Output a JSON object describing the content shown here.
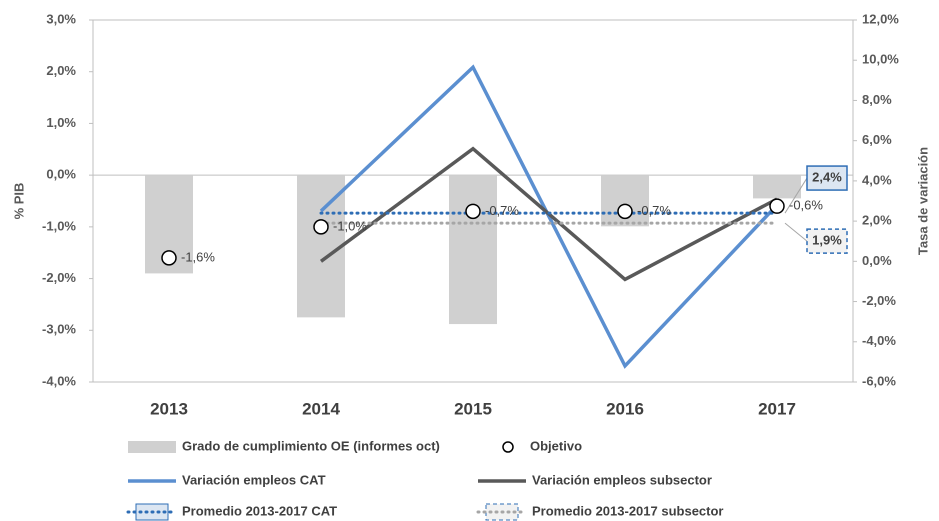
{
  "chart_data": {
    "type": "combo",
    "categories": [
      "2013",
      "2014",
      "2015",
      "2016",
      "2017"
    ],
    "ylabel": "% PIB",
    "y2label": "Tasa de variación",
    "ylim": [
      -4,
      3
    ],
    "yticks": [
      {
        "value": -4,
        "label": "-4,0%"
      },
      {
        "value": -3,
        "label": "-3,0%"
      },
      {
        "value": -2,
        "label": "-2,0%"
      },
      {
        "value": -1,
        "label": "-1,0%"
      },
      {
        "value": 0,
        "label": "0,0%"
      },
      {
        "value": 1,
        "label": "1,0%"
      },
      {
        "value": 2,
        "label": "2,0%"
      },
      {
        "value": 3,
        "label": "3,0%"
      }
    ],
    "y2lim": [
      -6,
      12
    ],
    "y2ticks": [
      {
        "value": -6,
        "label": "-6,0%"
      },
      {
        "value": -4,
        "label": "-4,0%"
      },
      {
        "value": -2,
        "label": "-2,0%"
      },
      {
        "value": 0,
        "label": "0,0%"
      },
      {
        "value": 2,
        "label": "2,0%"
      },
      {
        "value": 4,
        "label": "4,0%"
      },
      {
        "value": 6,
        "label": "6,0%"
      },
      {
        "value": 8,
        "label": "8,0%"
      },
      {
        "value": 10,
        "label": "10,0%"
      },
      {
        "value": 12,
        "label": "12,0%"
      }
    ],
    "series": [
      {
        "name": "Grado de cumplimiento OE (informes oct)",
        "type": "bar",
        "color": "#d0d0d0",
        "axis": "y",
        "values": [
          -1.9,
          -2.75,
          -2.88,
          -0.99,
          -0.45
        ]
      },
      {
        "name": "Objetivo",
        "type": "scatter",
        "color": "#000000",
        "axis": "y",
        "values": [
          -1.6,
          -1.0,
          -0.7,
          -0.7,
          -0.6
        ],
        "value_labels": [
          "-1,6%",
          "-1,0%",
          "-0,7%",
          "-0,7%",
          "-0,6%"
        ]
      },
      {
        "name": "Variación empleos CAT",
        "type": "line",
        "color": "#5b8fd0",
        "axis": "y2",
        "values": [
          null,
          2.5,
          9.65,
          -5.2,
          2.8
        ]
      },
      {
        "name": "Variación empleos subsector",
        "type": "line",
        "color": "#595959",
        "axis": "y2",
        "values": [
          null,
          0.0,
          5.6,
          -0.9,
          3.1
        ]
      },
      {
        "name": "Promedio 2013-2017 CAT",
        "type": "dotted",
        "color": "#2e6db5",
        "axis": "y2",
        "values": [
          null,
          2.4,
          2.4,
          2.4,
          2.4
        ],
        "value_labels": [
          null,
          null,
          null,
          null,
          "2,4%"
        ]
      },
      {
        "name": "Promedio 2013-2017 subsector",
        "type": "dotted",
        "color": "#a6a6a6",
        "axis": "y2",
        "values": [
          null,
          1.9,
          1.9,
          1.9,
          1.9
        ],
        "value_labels": [
          null,
          null,
          null,
          null,
          "1,9%"
        ]
      }
    ]
  }
}
